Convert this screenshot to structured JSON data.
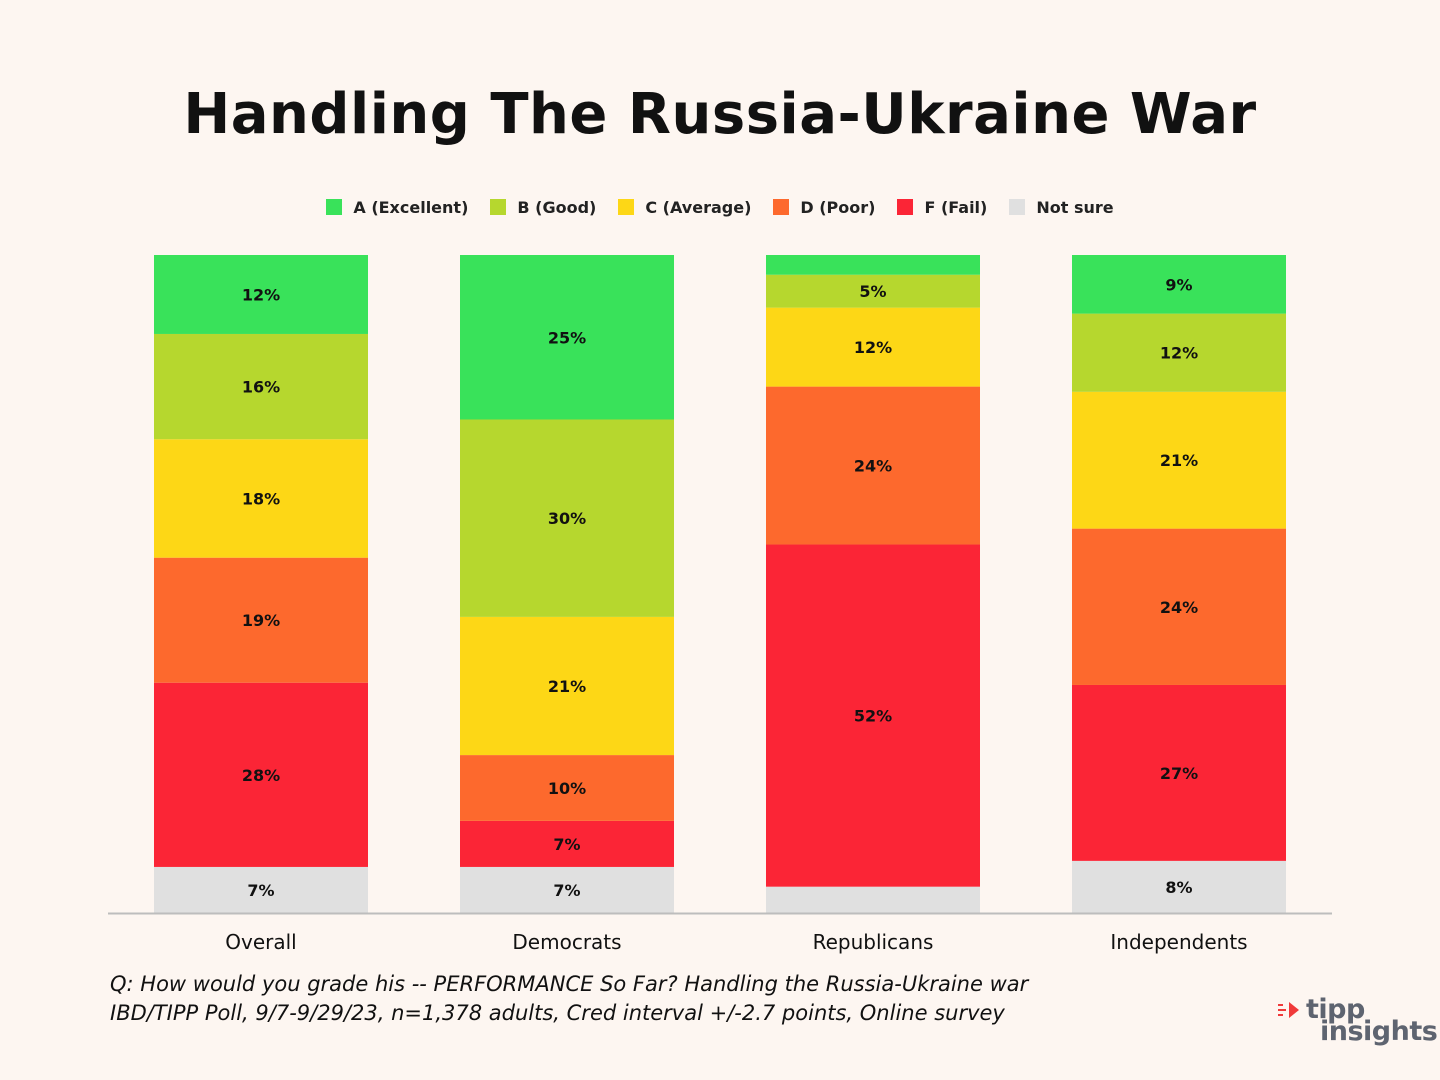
{
  "chart_data": {
    "type": "bar",
    "stacked": true,
    "orientation": "vertical",
    "title": "Handling The Russia-Ukraine War",
    "categories": [
      "Overall",
      "Democrats",
      "Republicans",
      "Independents"
    ],
    "series": [
      {
        "name": "Not sure",
        "color": "#e0e0e0",
        "values": [
          7,
          7,
          4,
          8
        ],
        "labels": [
          "7%",
          "7%",
          "",
          "8%"
        ]
      },
      {
        "name": "F (Fail)",
        "color": "#fb2536",
        "values": [
          28,
          7,
          52,
          27
        ],
        "labels": [
          "28%",
          "7%",
          "52%",
          "27%"
        ]
      },
      {
        "name": "D (Poor)",
        "color": "#fd692d",
        "values": [
          19,
          10,
          24,
          24
        ],
        "labels": [
          "19%",
          "10%",
          "24%",
          "24%"
        ]
      },
      {
        "name": "C (Average)",
        "color": "#fdd716",
        "values": [
          18,
          21,
          12,
          21
        ],
        "labels": [
          "18%",
          "21%",
          "12%",
          "21%"
        ]
      },
      {
        "name": "B (Good)",
        "color": "#b6d72e",
        "values": [
          16,
          30,
          5,
          12
        ],
        "labels": [
          "16%",
          "30%",
          "5%",
          "12%"
        ]
      },
      {
        "name": "A (Excellent)",
        "color": "#39e25a",
        "values": [
          12,
          25,
          3,
          9
        ],
        "labels": [
          "12%",
          "25%",
          "",
          "9%"
        ]
      }
    ],
    "legend_order": [
      "A (Excellent)",
      "B (Good)",
      "C (Average)",
      "D (Poor)",
      "F (Fail)",
      "Not sure"
    ],
    "legend_position": "top-center",
    "ylim": [
      0,
      100
    ],
    "grid": false
  },
  "legend": [
    {
      "name": "A (Excellent)",
      "color": "#39e25a"
    },
    {
      "name": "B (Good)",
      "color": "#b6d72e"
    },
    {
      "name": "C (Average)",
      "color": "#fdd716"
    },
    {
      "name": "D (Poor)",
      "color": "#fd692d"
    },
    {
      "name": "F (Fail)",
      "color": "#fb2536"
    },
    {
      "name": "Not sure",
      "color": "#e0e0e0"
    }
  ],
  "note": {
    "line1": "Q:  How would you grade his -- PERFORMANCE So Far? Handling the Russia-Ukraine war",
    "line2": "IBD/TIPP Poll, 9/7-9/29/23, n=1,378 adults, Cred interval +/-2.7 points, Online survey"
  },
  "logo": {
    "line1": "tipp",
    "line2": "insights",
    "accent_color": "#f03a3a",
    "text_color": "#5e6470"
  }
}
